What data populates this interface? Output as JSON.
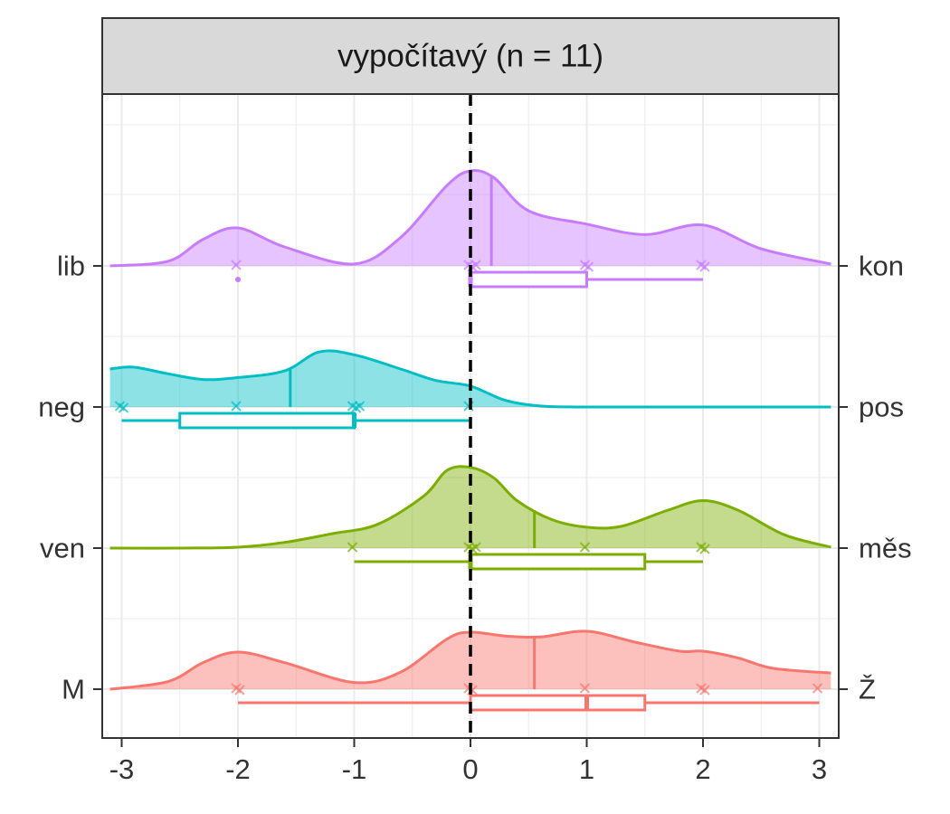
{
  "chart_data": {
    "type": "raincloud",
    "facet_title": "vypočítavý (n = 11)",
    "xlim": [
      -3.1,
      3.1
    ],
    "x_ticks": [
      -3,
      -2,
      -1,
      0,
      1,
      2,
      3
    ],
    "x_tick_labels": [
      "-3",
      "-2",
      "-1",
      "0",
      "1",
      "2",
      "3"
    ],
    "reference_line_x": 0,
    "rows": [
      {
        "left_label": "lib",
        "right_label": "kon",
        "color": "#C77CFF",
        "density_x": [
          -3.1,
          -2.6,
          -2.3,
          -2.0,
          -1.6,
          -1.0,
          -0.6,
          -0.2,
          0.0,
          0.2,
          0.5,
          1.0,
          1.5,
          2.0,
          2.5,
          3.1
        ],
        "density_y": [
          0.0,
          0.05,
          0.28,
          0.4,
          0.2,
          0.02,
          0.3,
          0.85,
          1.0,
          0.93,
          0.58,
          0.44,
          0.33,
          0.43,
          0.18,
          0.02
        ],
        "mean": 0.18,
        "points": [
          -2,
          0,
          0,
          0,
          1,
          1,
          2,
          2
        ],
        "box": {
          "min": 0,
          "q1": 0,
          "median": 0,
          "q3": 1,
          "max": 2
        },
        "outliers": [
          -2
        ]
      },
      {
        "left_label": "neg",
        "right_label": "pos",
        "color": "#00BFC4",
        "density_x": [
          -3.1,
          -2.9,
          -2.6,
          -2.3,
          -2.0,
          -1.6,
          -1.3,
          -1.0,
          -0.6,
          -0.3,
          0.0,
          0.3,
          0.6,
          1.0,
          2.0,
          3.1
        ],
        "density_y": [
          0.4,
          0.42,
          0.35,
          0.29,
          0.31,
          0.38,
          0.58,
          0.55,
          0.4,
          0.28,
          0.22,
          0.07,
          0.01,
          0.0,
          0.0,
          0.0
        ],
        "mean": -1.55,
        "points": [
          -3,
          -3,
          -2,
          -1,
          -1,
          -1,
          0
        ],
        "box": {
          "min": -3,
          "q1": -2.5,
          "median": -1,
          "q3": -1,
          "max": 0
        }
      },
      {
        "left_label": "ven",
        "right_label": "měs",
        "color": "#7CAE00",
        "density_x": [
          -3.1,
          -2.5,
          -2.0,
          -1.6,
          -1.2,
          -0.8,
          -0.4,
          -0.2,
          0.0,
          0.2,
          0.4,
          0.7,
          1.0,
          1.3,
          1.7,
          2.0,
          2.3,
          2.7,
          3.1
        ],
        "density_y": [
          0.0,
          0.0,
          0.01,
          0.06,
          0.15,
          0.25,
          0.55,
          0.82,
          0.85,
          0.74,
          0.5,
          0.3,
          0.22,
          0.23,
          0.4,
          0.5,
          0.4,
          0.14,
          0.01
        ],
        "mean": 0.55,
        "points": [
          -1,
          0,
          0,
          0,
          1,
          2,
          2
        ],
        "box": {
          "min": -1,
          "q1": 0,
          "median": 0,
          "q3": 1.5,
          "max": 2
        }
      },
      {
        "left_label": "M",
        "right_label": "Ž",
        "color": "#F8766D",
        "density_x": [
          -3.1,
          -2.6,
          -2.3,
          -2.0,
          -1.6,
          -1.0,
          -0.6,
          -0.2,
          0.0,
          0.3,
          0.6,
          1.0,
          1.4,
          1.8,
          2.0,
          2.3,
          2.6,
          3.1
        ],
        "density_y": [
          0.0,
          0.08,
          0.28,
          0.39,
          0.28,
          0.07,
          0.18,
          0.53,
          0.6,
          0.56,
          0.55,
          0.61,
          0.5,
          0.4,
          0.4,
          0.33,
          0.22,
          0.17
        ],
        "mean": 0.55,
        "points": [
          -2,
          -2,
          0,
          0,
          1,
          2,
          2,
          3
        ],
        "box": {
          "min": -2,
          "q1": 0,
          "median": 1,
          "q3": 1.5,
          "max": 3
        }
      }
    ]
  }
}
